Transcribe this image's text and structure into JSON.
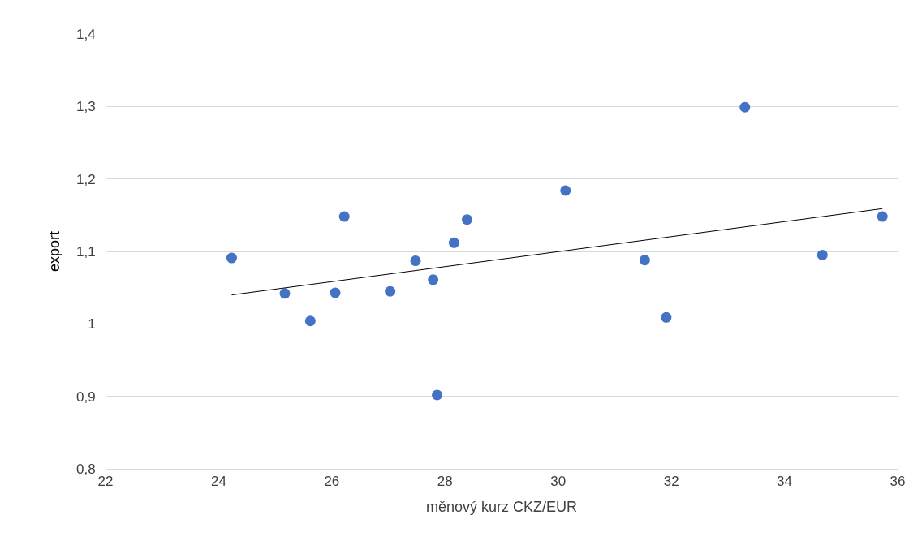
{
  "chart_data": {
    "type": "scatter",
    "xlabel": "měnový kurz CKZ/EUR",
    "ylabel": "export",
    "xlim": [
      22,
      36
    ],
    "xticks": [
      22,
      24,
      26,
      28,
      30,
      32,
      34,
      36
    ],
    "ylim": [
      0.8,
      1.4
    ],
    "yticks": [
      {
        "value": 0.8,
        "label": "0,8"
      },
      {
        "value": 0.9,
        "label": "0,9"
      },
      1,
      {
        "value": 1.1,
        "label": "1,1"
      },
      {
        "value": 1.2,
        "label": "1,2"
      },
      {
        "value": 1.3,
        "label": "1,3"
      },
      {
        "value": 1.4,
        "label": "1,4"
      }
    ],
    "grid": "y",
    "series": [
      {
        "marker": "circle",
        "color": "#4472c4",
        "x": [
          24.23,
          25.17,
          25.62,
          26.06,
          26.22,
          27.03,
          27.48,
          27.79,
          27.86,
          28.16,
          28.39,
          30.13,
          31.53,
          31.91,
          33.3,
          34.67,
          35.73
        ],
        "values": [
          1.091,
          1.042,
          1.004,
          1.043,
          1.148,
          1.045,
          1.087,
          1.061,
          0.902,
          1.112,
          1.144,
          1.184,
          1.088,
          1.009,
          1.299,
          1.095,
          1.148
        ]
      },
      {
        "type": "line",
        "marker": "none",
        "color": "#000000",
        "x": [
          24.23,
          35.73
        ],
        "values": [
          1.04,
          1.159
        ]
      }
    ]
  }
}
